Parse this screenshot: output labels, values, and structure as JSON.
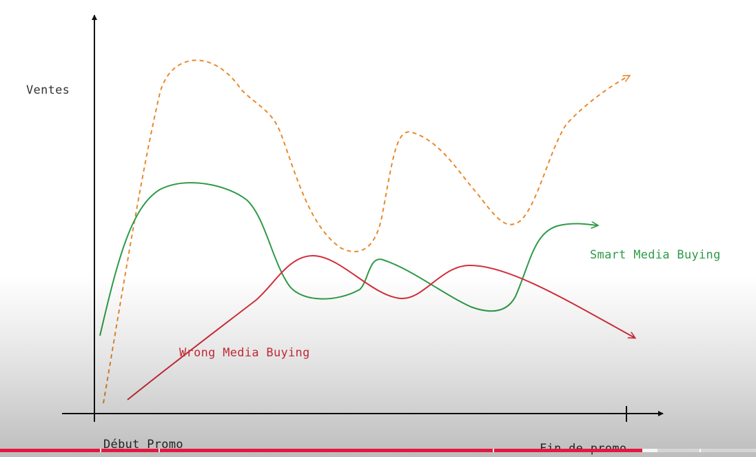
{
  "diagram": {
    "y_axis_label": "Ventes",
    "x_axis_start_label": "Début Promo",
    "x_axis_end_label": "Fin de promo",
    "curves": [
      {
        "id": "orange",
        "label": "",
        "color": "#e8892b",
        "style": "dashed"
      },
      {
        "id": "smart",
        "label": "Smart Media Buying",
        "color": "#2e9a47",
        "style": "solid"
      },
      {
        "id": "wrong",
        "label": "Wrong Media Buying",
        "color": "#d42d3a",
        "style": "solid"
      }
    ]
  },
  "video_player": {
    "progress_fraction": 0.85,
    "buffered_fraction": 0.87,
    "accent_color": "#e5173f"
  }
}
